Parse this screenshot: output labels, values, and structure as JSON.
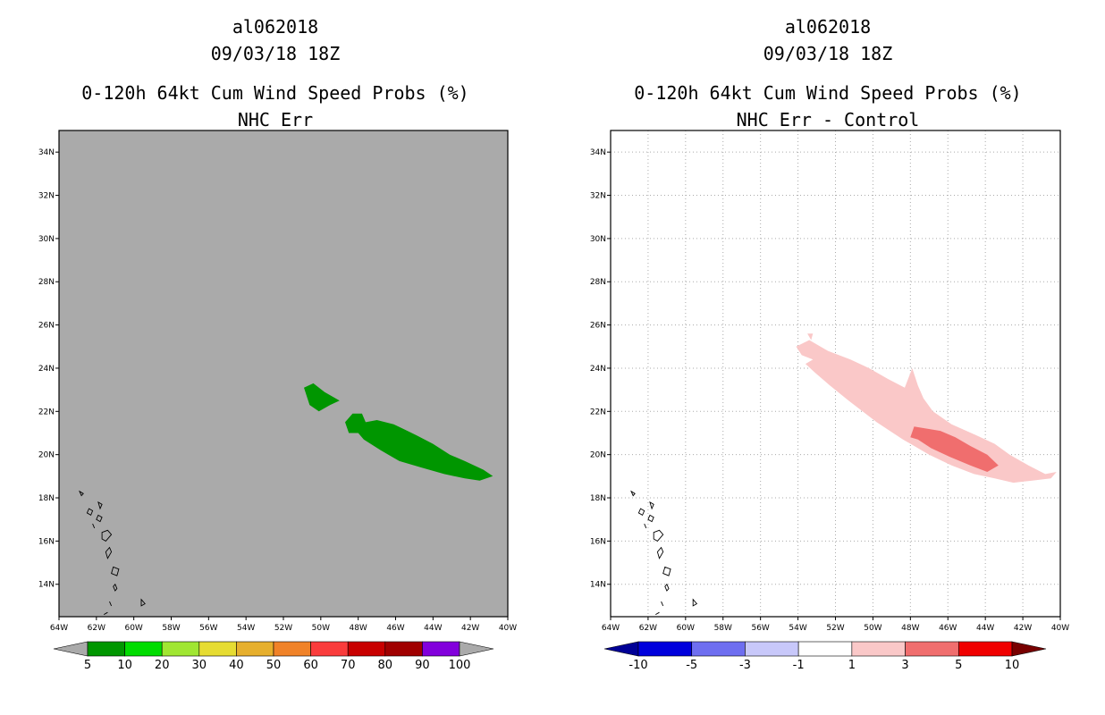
{
  "chart_data": [
    {
      "type": "contour-map",
      "storm_id": "al062018",
      "datetime": "09/03/18 18Z",
      "title": "0-120h 64kt Cum Wind Speed Probs (%)",
      "subtitle": "NHC Err",
      "lon_range": [
        -64,
        -40
      ],
      "lat_range": [
        12.5,
        35
      ],
      "background_color": "#aaaaaa",
      "grid": false,
      "x_ticks": [
        "64W",
        "62W",
        "60W",
        "58W",
        "56W",
        "54W",
        "52W",
        "50W",
        "48W",
        "46W",
        "44W",
        "42W",
        "40W"
      ],
      "y_ticks": [
        "14N",
        "16N",
        "18N",
        "20N",
        "22N",
        "24N",
        "26N",
        "28N",
        "30N",
        "32N",
        "34N"
      ],
      "regions": [
        {
          "level": "5-10",
          "color": "#009600",
          "polygon": [
            [
              -50.9,
              23.1
            ],
            [
              -50.4,
              23.3
            ],
            [
              -49.8,
              22.9
            ],
            [
              -49.0,
              22.5
            ],
            [
              -49.5,
              22.3
            ],
            [
              -50.1,
              22.0
            ],
            [
              -50.6,
              22.3
            ]
          ]
        },
        {
          "level": "5-10",
          "color": "#009600",
          "polygon": [
            [
              -48.7,
              21.5
            ],
            [
              -48.3,
              21.9
            ],
            [
              -47.8,
              21.9
            ],
            [
              -47.6,
              21.5
            ],
            [
              -47.0,
              21.6
            ],
            [
              -46.1,
              21.4
            ],
            [
              -45.6,
              21.2
            ],
            [
              -44.9,
              20.9
            ],
            [
              -44.0,
              20.5
            ],
            [
              -43.1,
              20.0
            ],
            [
              -42.3,
              19.7
            ],
            [
              -41.3,
              19.3
            ],
            [
              -40.8,
              19.0
            ],
            [
              -41.5,
              18.8
            ],
            [
              -42.3,
              18.9
            ],
            [
              -43.4,
              19.1
            ],
            [
              -44.6,
              19.4
            ],
            [
              -45.8,
              19.7
            ],
            [
              -46.8,
              20.2
            ],
            [
              -47.7,
              20.7
            ],
            [
              -48.0,
              21.0
            ],
            [
              -48.5,
              21.0
            ]
          ]
        }
      ],
      "colorbar": {
        "labels": [
          "5",
          "10",
          "20",
          "30",
          "40",
          "50",
          "60",
          "70",
          "80",
          "90",
          "100"
        ],
        "colors": [
          "#009600",
          "#00dc00",
          "#a0e632",
          "#e6dc32",
          "#e6af2d",
          "#f08228",
          "#fa3c3c",
          "#c80000",
          "#a00000",
          "#8200dc"
        ],
        "under_color": "#aaaaaa",
        "over_color": "#aaaaaa"
      }
    },
    {
      "type": "contour-map",
      "storm_id": "al062018",
      "datetime": "09/03/18 18Z",
      "title": "0-120h 64kt Cum Wind Speed Probs (%)",
      "subtitle": "NHC Err - Control",
      "lon_range": [
        -64,
        -40
      ],
      "lat_range": [
        12.5,
        35
      ],
      "background_color": "#ffffff",
      "grid": true,
      "x_ticks": [
        "64W",
        "62W",
        "60W",
        "58W",
        "56W",
        "54W",
        "52W",
        "50W",
        "48W",
        "46W",
        "44W",
        "42W",
        "40W"
      ],
      "y_ticks": [
        "14N",
        "16N",
        "18N",
        "20N",
        "22N",
        "24N",
        "26N",
        "28N",
        "30N",
        "32N",
        "34N"
      ],
      "regions": [
        {
          "level": "1-3",
          "color": "#fac8c8",
          "polygon": [
            [
              -54.1,
              25.0
            ],
            [
              -53.4,
              25.3
            ],
            [
              -52.4,
              24.8
            ],
            [
              -51.2,
              24.4
            ],
            [
              -50.2,
              24.0
            ],
            [
              -49.2,
              23.5
            ],
            [
              -48.3,
              23.1
            ],
            [
              -47.9,
              24.0
            ],
            [
              -47.6,
              23.2
            ],
            [
              -47.3,
              22.6
            ],
            [
              -46.8,
              22.0
            ],
            [
              -45.8,
              21.4
            ],
            [
              -44.5,
              20.9
            ],
            [
              -43.5,
              20.5
            ],
            [
              -42.7,
              20.0
            ],
            [
              -41.7,
              19.5
            ],
            [
              -40.8,
              19.1
            ],
            [
              -40.2,
              19.2
            ],
            [
              -40.5,
              18.9
            ],
            [
              -41.5,
              18.8
            ],
            [
              -42.5,
              18.7
            ],
            [
              -43.5,
              18.9
            ],
            [
              -44.6,
              19.1
            ],
            [
              -45.8,
              19.5
            ],
            [
              -47.0,
              20.0
            ],
            [
              -48.4,
              20.7
            ],
            [
              -49.8,
              21.5
            ],
            [
              -51.3,
              22.5
            ],
            [
              -52.3,
              23.2
            ],
            [
              -53.1,
              23.8
            ],
            [
              -53.6,
              24.2
            ],
            [
              -53.2,
              24.4
            ],
            [
              -53.8,
              24.6
            ]
          ]
        },
        {
          "level": "1-3",
          "color": "#fac8c8",
          "polygon": [
            [
              -53.5,
              25.6
            ],
            [
              -53.2,
              25.6
            ],
            [
              -53.3,
              25.3
            ]
          ]
        },
        {
          "level": "3-5",
          "color": "#f06e6e",
          "polygon": [
            [
              -47.8,
              21.3
            ],
            [
              -46.4,
              21.1
            ],
            [
              -45.6,
              20.8
            ],
            [
              -44.8,
              20.4
            ],
            [
              -43.9,
              20.0
            ],
            [
              -43.3,
              19.5
            ],
            [
              -43.9,
              19.2
            ],
            [
              -44.8,
              19.5
            ],
            [
              -45.9,
              19.9
            ],
            [
              -46.9,
              20.3
            ],
            [
              -47.6,
              20.7
            ],
            [
              -48.0,
              20.8
            ]
          ]
        }
      ],
      "colorbar": {
        "labels": [
          "-10",
          "-5",
          "-3",
          "-1",
          "1",
          "3",
          "5",
          "10"
        ],
        "colors": [
          "#0000dc",
          "#6e6ef0",
          "#c8c8fa",
          "#ffffff",
          "#fac8c8",
          "#f06e6e",
          "#f00000"
        ],
        "under_color": "#000096",
        "over_color": "#780000"
      }
    }
  ]
}
